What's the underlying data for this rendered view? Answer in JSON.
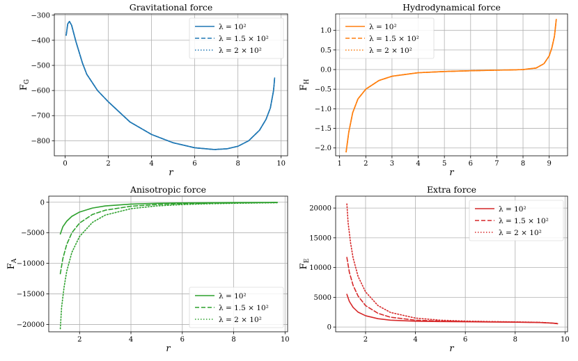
{
  "chart_data": [
    {
      "type": "line",
      "title": "Gravitational force",
      "xlabel": "r",
      "ylabel_main": "F",
      "ylabel_sub": "G",
      "xlim": [
        -0.5,
        10.3
      ],
      "ylim": [
        -860,
        -295
      ],
      "xticks": [
        0,
        2,
        4,
        6,
        8,
        10
      ],
      "xtick_labels": [
        "0",
        "2",
        "4",
        "6",
        "8",
        "10"
      ],
      "yticks": [
        -300,
        -400,
        -500,
        -600,
        -700,
        -800
      ],
      "ytick_labels": [
        "−300",
        "−400",
        "−500",
        "−600",
        "−700",
        "−800"
      ],
      "grid": true,
      "legend_position": "top-right",
      "color": "#1f77b4",
      "series": [
        {
          "name": "λ = 10²",
          "dash": "solid",
          "x": [
            0.05,
            0.12,
            0.2,
            0.3,
            0.5,
            0.8,
            1.0,
            1.5,
            2.0,
            3.0,
            4.0,
            5.0,
            6.0,
            6.9,
            7.5,
            8.0,
            8.5,
            9.0,
            9.3,
            9.5,
            9.65,
            9.7
          ],
          "y": [
            -380,
            -335,
            -325,
            -340,
            -405,
            -490,
            -535,
            -600,
            -645,
            -725,
            -775,
            -808,
            -828,
            -835,
            -832,
            -822,
            -800,
            -758,
            -715,
            -670,
            -600,
            -550
          ]
        },
        {
          "name": "λ = 1.5 × 10²",
          "dash": "dashed",
          "x": [
            0.05,
            0.12,
            0.2,
            0.3,
            0.5,
            0.8,
            1.0,
            1.5,
            2.0,
            3.0,
            4.0,
            5.0,
            6.0,
            6.9,
            7.5,
            8.0,
            8.5,
            9.0,
            9.3,
            9.5,
            9.65,
            9.7
          ],
          "y": [
            -380,
            -335,
            -325,
            -340,
            -405,
            -490,
            -535,
            -600,
            -645,
            -725,
            -775,
            -808,
            -828,
            -835,
            -832,
            -822,
            -800,
            -758,
            -715,
            -670,
            -600,
            -550
          ]
        },
        {
          "name": "λ = 2 × 10²",
          "dash": "dotted",
          "x": [
            0.05,
            0.12,
            0.2,
            0.3,
            0.5,
            0.8,
            1.0,
            1.5,
            2.0,
            3.0,
            4.0,
            5.0,
            6.0,
            6.9,
            7.5,
            8.0,
            8.5,
            9.0,
            9.3,
            9.5,
            9.65,
            9.7
          ],
          "y": [
            -380,
            -335,
            -325,
            -340,
            -405,
            -490,
            -535,
            -600,
            -645,
            -725,
            -775,
            -808,
            -828,
            -835,
            -832,
            -822,
            -800,
            -758,
            -715,
            -670,
            -600,
            -550
          ]
        }
      ]
    },
    {
      "type": "line",
      "title": "Hydrodynamical force",
      "xlabel": "r",
      "ylabel_main": "F",
      "ylabel_sub": "H",
      "xlim": [
        0.85,
        9.7
      ],
      "ylim": [
        -2.2,
        1.42
      ],
      "xticks": [
        1,
        2,
        3,
        4,
        5,
        6,
        7,
        8,
        9
      ],
      "xtick_labels": [
        "1",
        "2",
        "3",
        "4",
        "5",
        "6",
        "7",
        "8",
        "9"
      ],
      "yticks": [
        1.0,
        0.5,
        0.0,
        -0.5,
        -1.0,
        -1.5,
        -2.0
      ],
      "ytick_labels": [
        "1.0",
        "0.5",
        "0.0",
        "−0.5",
        "−1.0",
        "−1.5",
        "−2.0"
      ],
      "grid": true,
      "legend_position": "top-left",
      "color": "#ff7f0e",
      "series": [
        {
          "name": "λ = 10²",
          "dash": "solid",
          "x": [
            1.25,
            1.35,
            1.5,
            1.7,
            2.0,
            2.5,
            3.0,
            4.0,
            5.0,
            6.0,
            7.0,
            7.5,
            8.0,
            8.5,
            8.8,
            9.0,
            9.1,
            9.2,
            9.27
          ],
          "y": [
            -2.1,
            -1.6,
            -1.1,
            -0.75,
            -0.5,
            -0.28,
            -0.17,
            -0.08,
            -0.05,
            -0.03,
            -0.015,
            -0.01,
            0.0,
            0.04,
            0.15,
            0.35,
            0.55,
            0.85,
            1.28
          ]
        },
        {
          "name": "λ = 1.5 × 10²",
          "dash": "dashed",
          "x": [
            1.25,
            1.35,
            1.5,
            1.7,
            2.0,
            2.5,
            3.0,
            4.0,
            5.0,
            6.0,
            7.0,
            7.5,
            8.0,
            8.5,
            8.8,
            9.0,
            9.1,
            9.2,
            9.27
          ],
          "y": [
            -2.1,
            -1.6,
            -1.1,
            -0.75,
            -0.5,
            -0.28,
            -0.17,
            -0.08,
            -0.05,
            -0.03,
            -0.015,
            -0.01,
            0.0,
            0.04,
            0.15,
            0.35,
            0.55,
            0.85,
            1.28
          ]
        },
        {
          "name": "λ = 2 × 10²",
          "dash": "dotted",
          "x": [
            1.25,
            1.35,
            1.5,
            1.7,
            2.0,
            2.5,
            3.0,
            4.0,
            5.0,
            6.0,
            7.0,
            7.5,
            8.0,
            8.5,
            8.8,
            9.0,
            9.1,
            9.2,
            9.27
          ],
          "y": [
            -2.1,
            -1.6,
            -1.1,
            -0.75,
            -0.5,
            -0.28,
            -0.17,
            -0.08,
            -0.05,
            -0.03,
            -0.015,
            -0.01,
            0.0,
            0.04,
            0.15,
            0.35,
            0.55,
            0.85,
            1.28
          ]
        }
      ]
    },
    {
      "type": "line",
      "title": "Anisotropic force",
      "xlabel": "r",
      "ylabel_main": "F",
      "ylabel_sub": "A",
      "xlim": [
        0.8,
        10.1
      ],
      "ylim": [
        -21200,
        1000
      ],
      "xticks": [
        2,
        4,
        6,
        8,
        10
      ],
      "xtick_labels": [
        "2",
        "4",
        "6",
        "8",
        "10"
      ],
      "yticks": [
        0,
        -5000,
        -10000,
        -15000,
        -20000
      ],
      "ytick_labels": [
        "0",
        "−5000",
        "−10000",
        "−15000",
        "−20000"
      ],
      "grid": true,
      "legend_position": "bottom-right",
      "color": "#2ca02c",
      "series": [
        {
          "name": "λ = 10²",
          "dash": "solid",
          "x": [
            1.25,
            1.35,
            1.5,
            1.7,
            2.0,
            2.5,
            3.0,
            4.0,
            5.0,
            6.0,
            7.0,
            8.0,
            9.0,
            9.7
          ],
          "y": [
            -5200,
            -4000,
            -3100,
            -2300,
            -1600,
            -950,
            -600,
            -300,
            -170,
            -110,
            -70,
            -50,
            -30,
            -20
          ]
        },
        {
          "name": "λ = 1.5 × 10²",
          "dash": "dashed",
          "x": [
            1.25,
            1.35,
            1.5,
            1.7,
            2.0,
            2.5,
            3.0,
            4.0,
            5.0,
            6.0,
            7.0,
            8.0,
            9.0,
            9.7
          ],
          "y": [
            -11700,
            -9200,
            -6900,
            -5000,
            -3400,
            -2000,
            -1300,
            -650,
            -370,
            -230,
            -150,
            -100,
            -60,
            -45
          ]
        },
        {
          "name": "λ = 2 × 10²",
          "dash": "dotted",
          "x": [
            1.25,
            1.3,
            1.4,
            1.5,
            1.7,
            2.0,
            2.5,
            3.0,
            4.0,
            5.0,
            6.0,
            7.0,
            8.0,
            9.0,
            9.7
          ],
          "y": [
            -20700,
            -17200,
            -13800,
            -11300,
            -8200,
            -5600,
            -3300,
            -2100,
            -1050,
            -600,
            -380,
            -250,
            -170,
            -110,
            -80
          ]
        }
      ]
    },
    {
      "type": "line",
      "title": "Extra force",
      "xlabel": "r",
      "ylabel_main": "F",
      "ylabel_sub": "E",
      "xlim": [
        0.8,
        10.1
      ],
      "ylim": [
        -800,
        22000
      ],
      "xticks": [
        2,
        4,
        6,
        8,
        10
      ],
      "xtick_labels": [
        "2",
        "4",
        "6",
        "8",
        "10"
      ],
      "yticks": [
        20000,
        15000,
        10000,
        5000,
        0
      ],
      "ytick_labels": [
        "20000",
        "15000",
        "10000",
        "5000",
        "0"
      ],
      "grid": true,
      "legend_position": "top-right",
      "color": "#d62728",
      "series": [
        {
          "name": "λ = 10²",
          "dash": "solid",
          "x": [
            1.25,
            1.35,
            1.5,
            1.7,
            2.0,
            2.5,
            3.0,
            4.0,
            5.0,
            6.0,
            7.0,
            8.0,
            9.0,
            9.5,
            9.7
          ],
          "y": [
            5500,
            4300,
            3300,
            2500,
            1900,
            1400,
            1150,
            980,
            920,
            880,
            850,
            820,
            750,
            650,
            550
          ]
        },
        {
          "name": "λ = 1.5 × 10²",
          "dash": "dashed",
          "x": [
            1.25,
            1.35,
            1.5,
            1.7,
            2.0,
            2.5,
            3.0,
            4.0,
            5.0,
            6.0,
            7.0,
            8.0,
            9.0,
            9.5,
            9.7
          ],
          "y": [
            11700,
            9200,
            7000,
            5200,
            3600,
            2300,
            1650,
            1150,
            1000,
            920,
            880,
            840,
            770,
            670,
            570
          ]
        },
        {
          "name": "λ = 2 × 10²",
          "dash": "dotted",
          "x": [
            1.25,
            1.3,
            1.4,
            1.5,
            1.7,
            2.0,
            2.5,
            3.0,
            4.0,
            5.0,
            6.0,
            7.0,
            8.0,
            9.0,
            9.7
          ],
          "y": [
            20700,
            17500,
            14100,
            11600,
            8500,
            5900,
            3600,
            2450,
            1500,
            1150,
            1000,
            920,
            860,
            790,
            600
          ]
        }
      ]
    }
  ]
}
